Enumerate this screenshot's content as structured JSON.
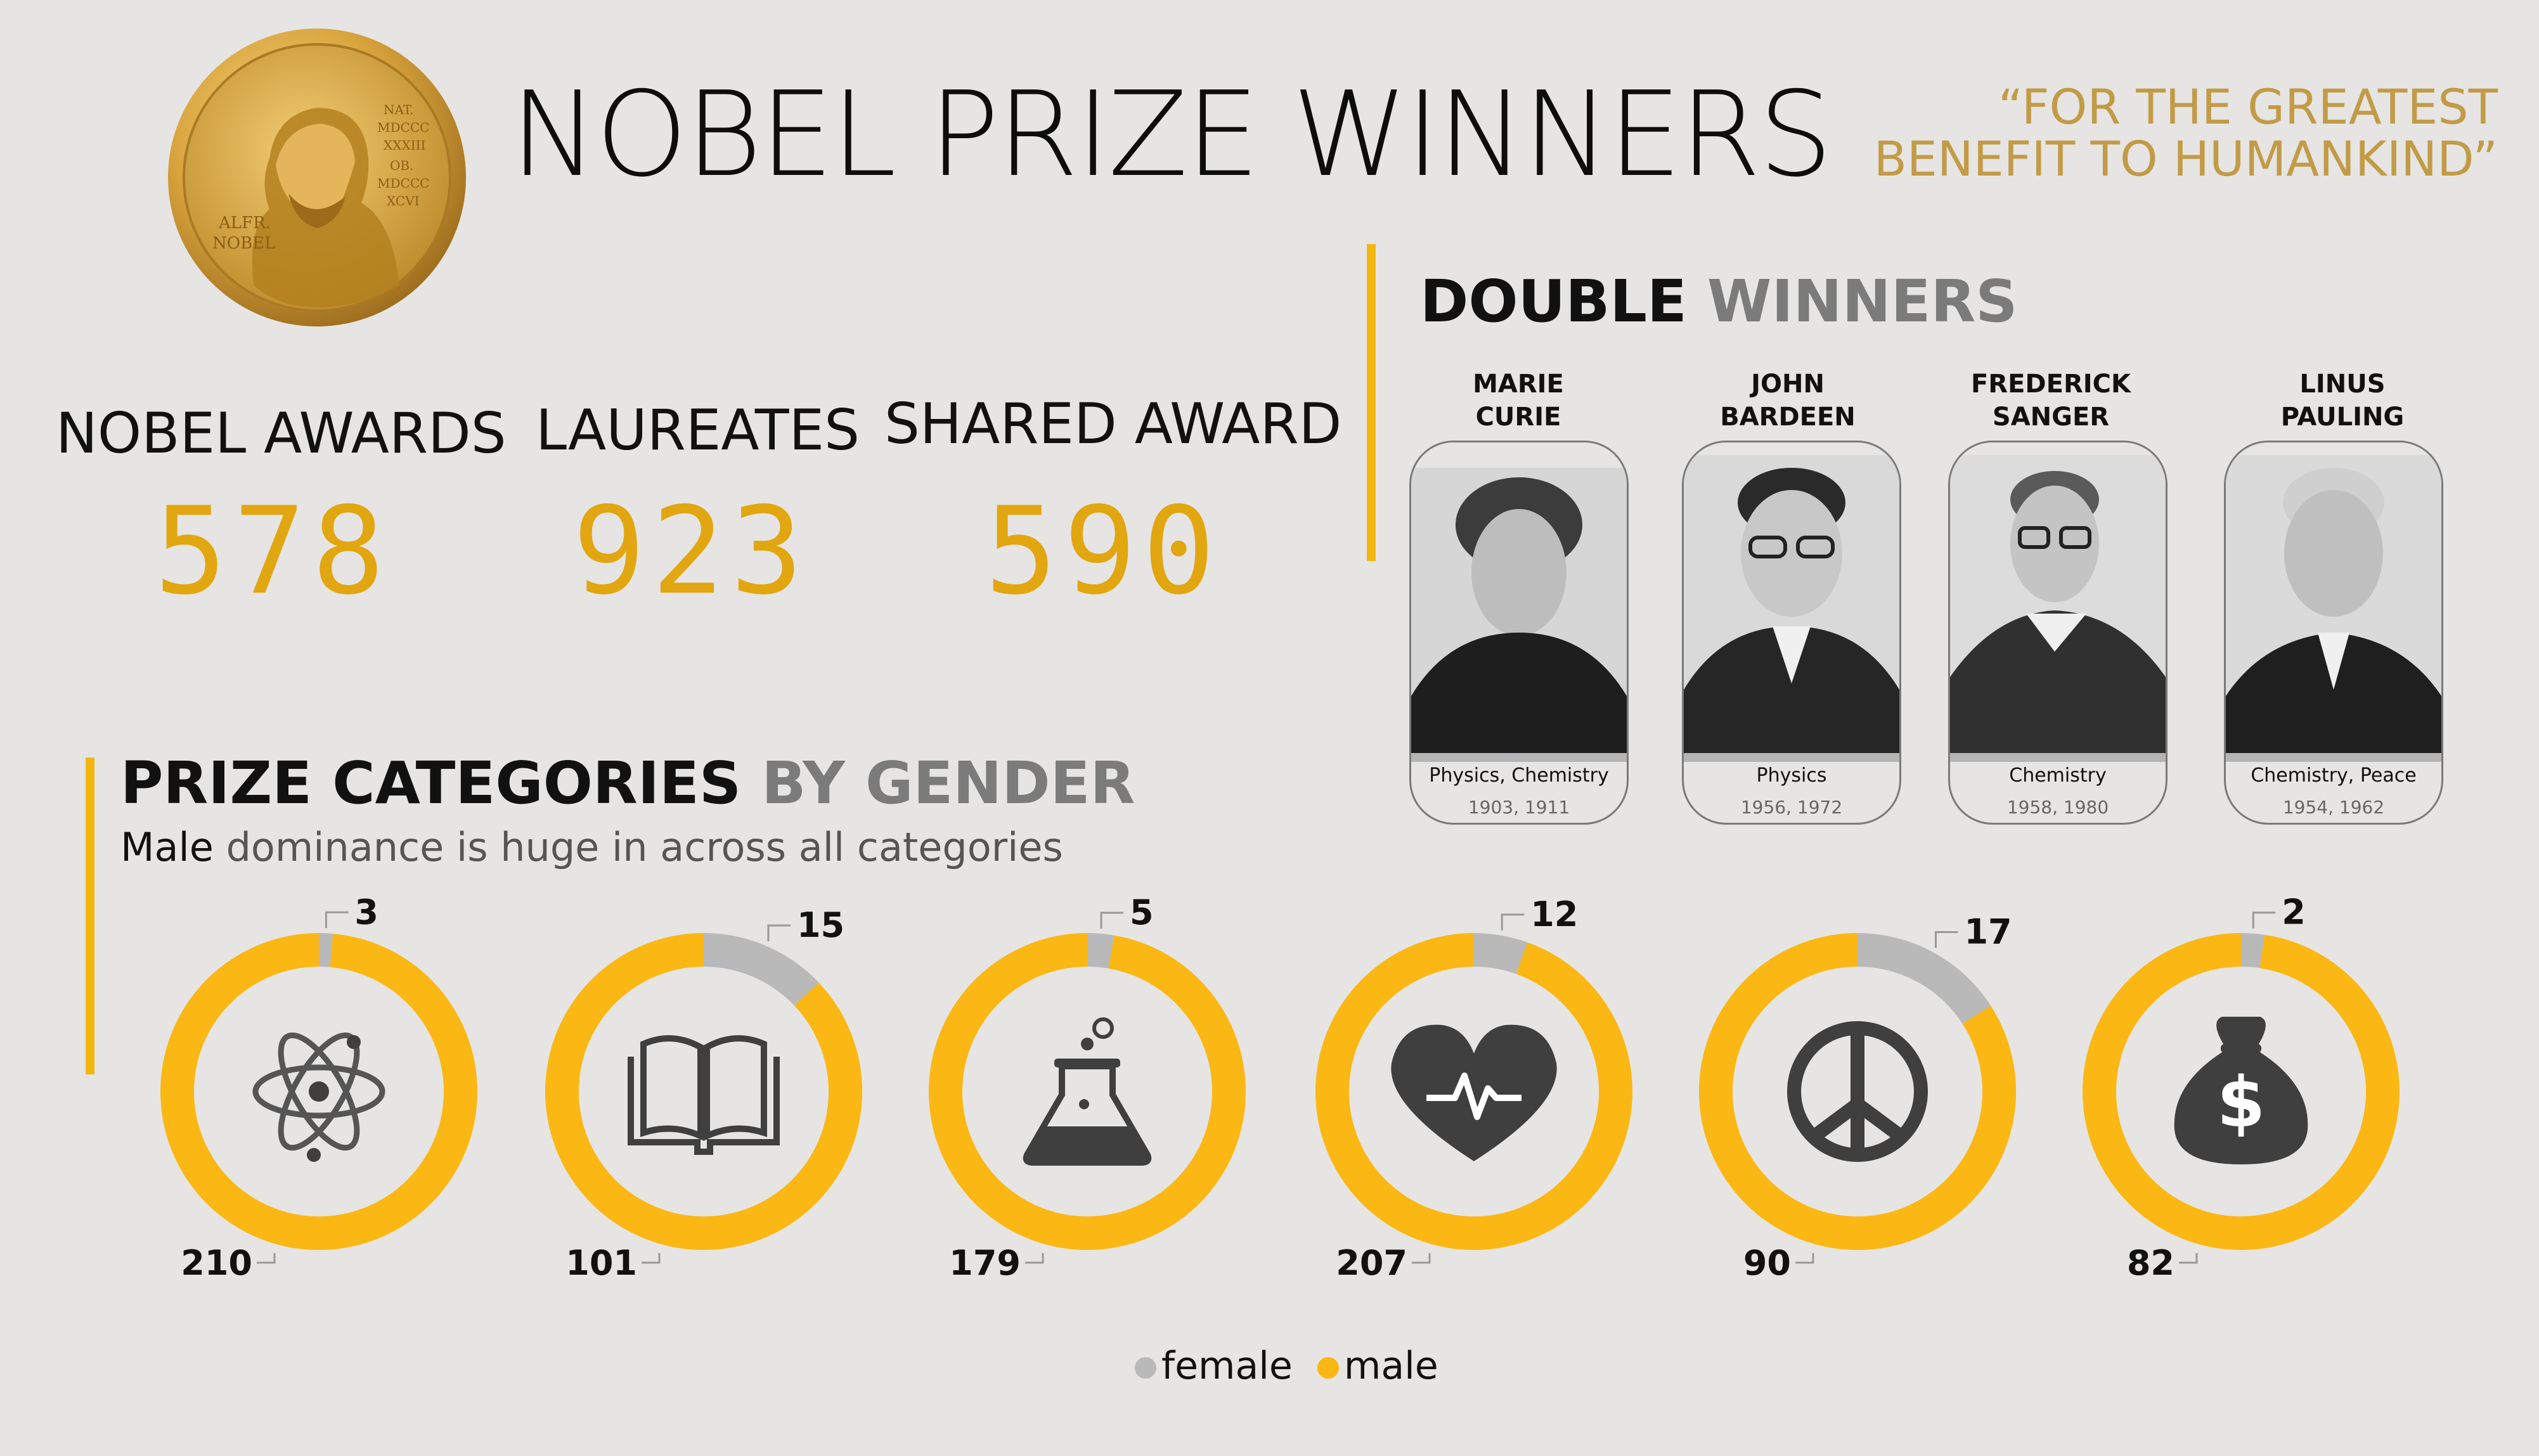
{
  "title": "NOBEL PRIZE WINNERS",
  "quote": "“FOR THE GREATEST\nBENEFIT TO HUMANKIND”",
  "medal": {
    "inscription_left": "ALFR. NOBEL",
    "inscription_right": "NAT. MDCCC XXXIII OB. MDCCC XCVI"
  },
  "stats": [
    {
      "label": "NOBEL AWARDS",
      "value": "578"
    },
    {
      "label": "LAUREATES",
      "value": "923"
    },
    {
      "label": "SHARED AWARD",
      "value": "590"
    }
  ],
  "double_winners": {
    "heading_dark": "DOUBLE",
    "heading_grey": "WINNERS",
    "people": [
      {
        "first": "MARIE",
        "last": "CURIE",
        "field": "Physics, Chemistry",
        "years": "1903, 1911"
      },
      {
        "first": "JOHN",
        "last": "BARDEEN",
        "field": "Physics",
        "years": "1956, 1972"
      },
      {
        "first": "FREDERICK",
        "last": "SANGER",
        "field": "Chemistry",
        "years": "1958, 1980"
      },
      {
        "first": "LINUS",
        "last": "PAULING",
        "field": "Chemistry, Peace",
        "years": "1954, 1962"
      }
    ]
  },
  "categories": {
    "heading_dark": "PRIZE CATEGORIES",
    "heading_grey": "BY GENDER",
    "subtitle_strong": "Male",
    "subtitle_rest": " dominance is huge in across all categories"
  },
  "legend": {
    "female": "female",
    "male": "male"
  },
  "colors": {
    "female": "#b9b9b9",
    "male": "#fbb713",
    "accent": "#f3b60e",
    "gold_text": "#e1a610",
    "quote": "#c29b47",
    "icon": "#3f3f3f"
  },
  "chart_data": {
    "type": "pie",
    "subtype": "donut",
    "series_names": [
      "female",
      "male"
    ],
    "charts": [
      {
        "icon": "atom-icon",
        "female": 3,
        "male": 210
      },
      {
        "icon": "book-icon",
        "female": 15,
        "male": 101
      },
      {
        "icon": "flask-icon",
        "female": 5,
        "male": 179
      },
      {
        "icon": "heart-pulse-icon",
        "female": 12,
        "male": 207
      },
      {
        "icon": "peace-icon",
        "female": 17,
        "male": 90
      },
      {
        "icon": "money-bag-icon",
        "female": 2,
        "male": 82
      }
    ]
  }
}
